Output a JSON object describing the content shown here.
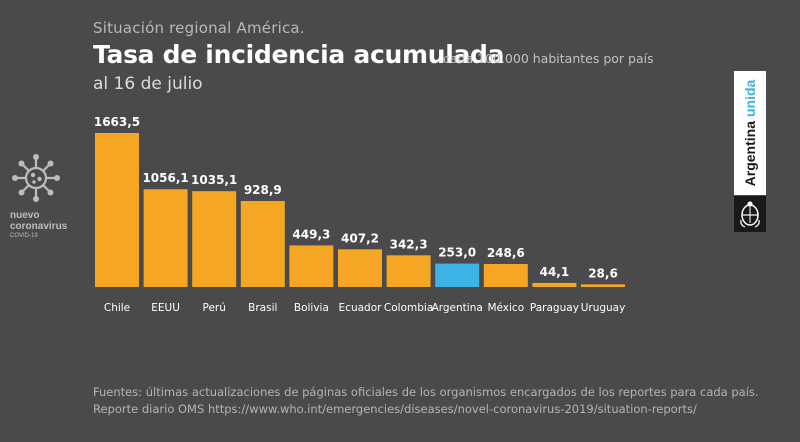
{
  "header": {
    "supertitle": "Situación regional América.",
    "title": "Tasa de incidencia acumulada",
    "subtitle": "cada 100.000 habitantes por país",
    "date_line": "al 16 de julio"
  },
  "logo_left": {
    "icon": "virus-icon",
    "line1": "nuevo",
    "line2": "coronavirus",
    "line3": "COVID-19"
  },
  "brand": {
    "word1": "Argentina",
    "word2": "unida",
    "seal_icon": "national-seal-icon"
  },
  "colors": {
    "background": "#4a4a4c",
    "bar": "#f5a623",
    "highlight": "#3db3e5",
    "text": "#ffffff"
  },
  "chart_data": {
    "type": "bar",
    "categories": [
      "Chile",
      "EEUU",
      "Perú",
      "Brasil",
      "Bolivia",
      "Ecuador",
      "Colombia",
      "Argentina",
      "México",
      "Paraguay",
      "Uruguay"
    ],
    "values": [
      1663.5,
      1056.1,
      1035.1,
      928.9,
      449.3,
      407.2,
      342.3,
      253.0,
      248.6,
      44.1,
      28.6
    ],
    "value_labels": [
      "1663,5",
      "1056,1",
      "1035,1",
      "928,9",
      "449,3",
      "407,2",
      "342,3",
      "253,0",
      "248,6",
      "44,1",
      "28,6"
    ],
    "highlight_category": "Argentina",
    "title": "Tasa de incidencia acumulada",
    "xlabel": "",
    "ylabel": "",
    "ylim": [
      0,
      1663.5
    ],
    "grid": false,
    "legend": "none"
  },
  "footer": {
    "line1": "Fuentes: últimas actualizaciones de páginas oficiales de los organismos encargados de los reportes para cada país.",
    "line2": "Reporte diario OMS https://www.who.int/emergencies/diseases/novel-coronavirus-2019/situation-reports/"
  }
}
